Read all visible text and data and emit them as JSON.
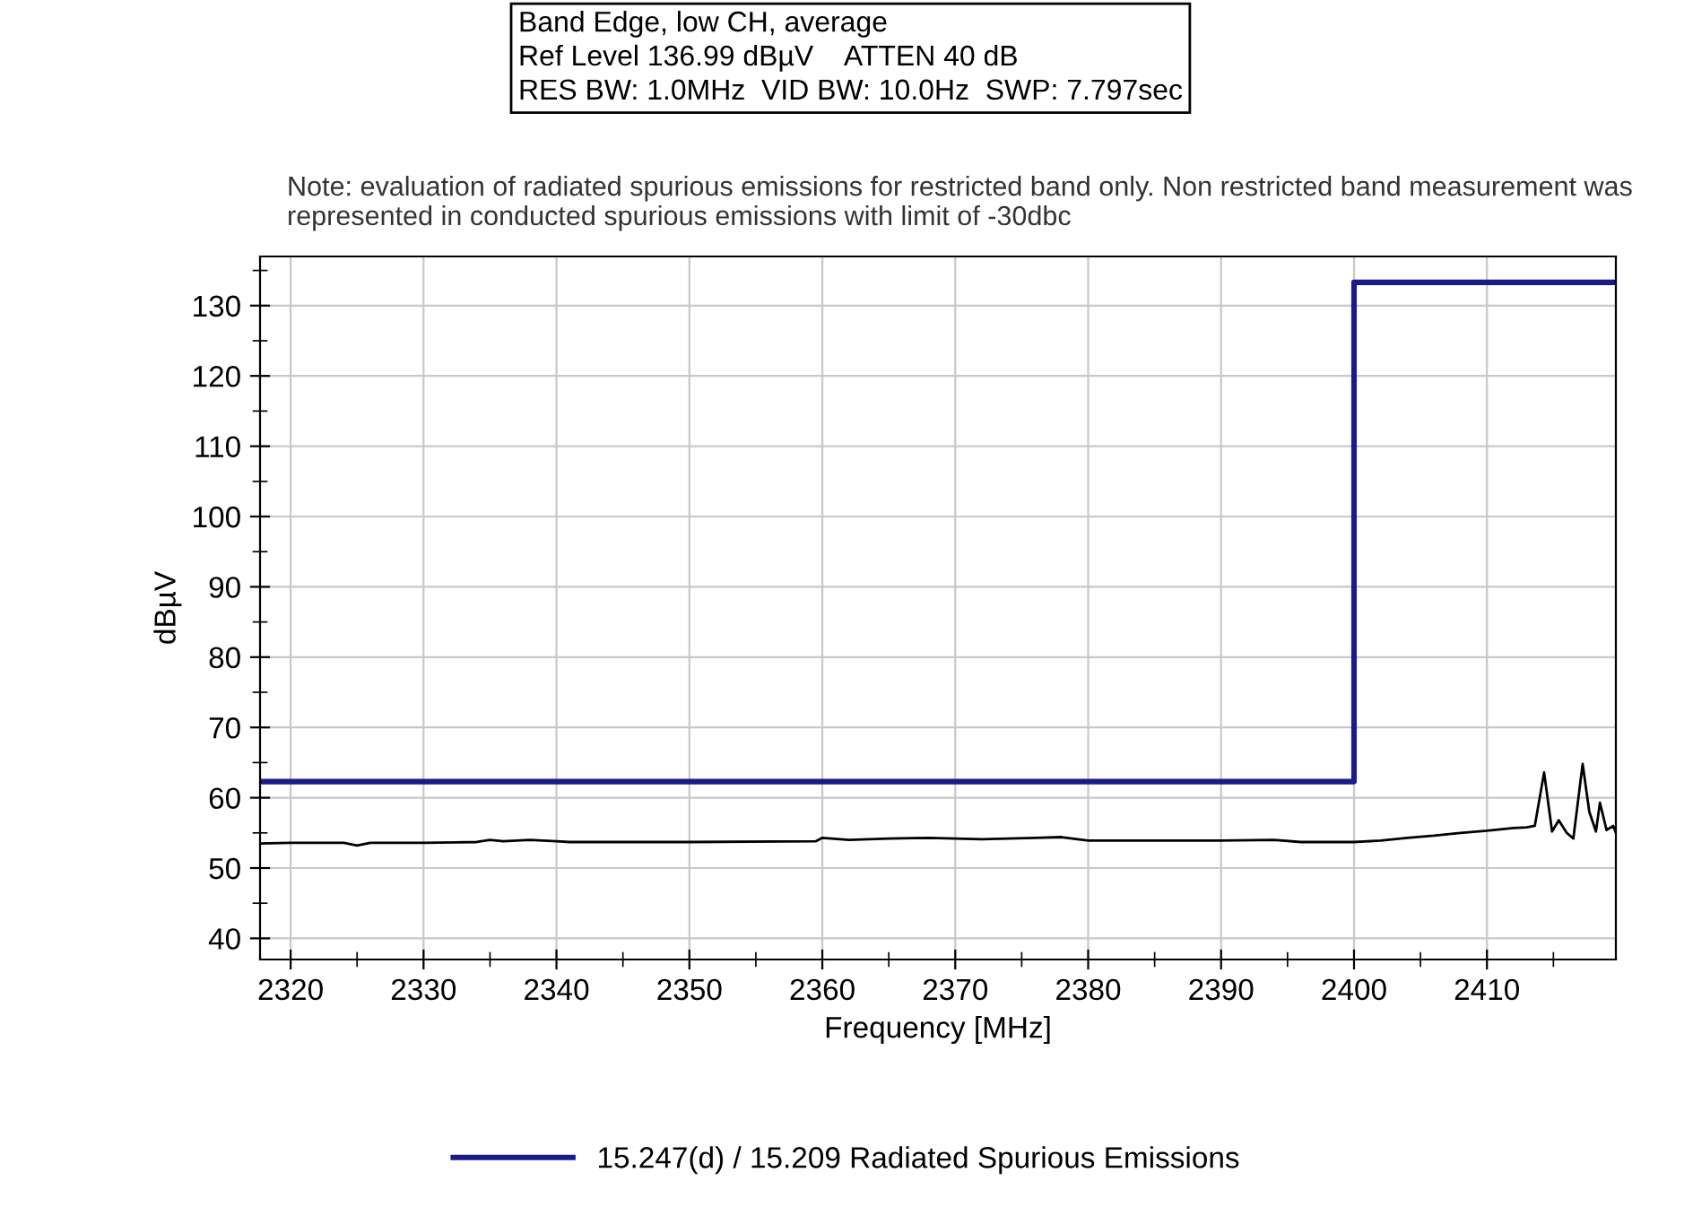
{
  "chart_data": {
    "type": "line",
    "title": "Band Edge, low CH, average\nRef Level 136.99 dBµV    ATTEN 40 dB\nRES BW: 1.0MHz  VID BW: 10.0Hz  SWP: 7.797sec",
    "subtitle": "Note: evaluation of radiated spurious emissions for restricted band only. Non restricted band measurement was represented in conducted spurious emissions with limit of -30dbc",
    "xlabel": "Frequency [MHz]",
    "ylabel": "dBµV",
    "series": [
      {
        "name": "15.247(d) / 15.209 Radiated Spurious Emissions",
        "color": "#1a1a8c",
        "type": "step",
        "x": [
          2317.7,
          2400,
          2419.7
        ],
        "values": [
          62.3,
          133.3,
          133.3
        ]
      },
      {
        "color": "#000000",
        "x": [
          2317.7,
          2320,
          2324,
          2325,
          2326,
          2330,
          2334,
          2335,
          2336,
          2338,
          2340,
          2341,
          2350,
          2359.5,
          2360,
          2362,
          2365,
          2368,
          2372,
          2376,
          2378,
          2380,
          2390,
          2394,
          2396,
          2400,
          2402,
          2404,
          2406,
          2408,
          2410,
          2412,
          2413,
          2413.6,
          2414.3,
          2414.9,
          2415.4,
          2416.0,
          2416.5,
          2417.2,
          2417.7,
          2418.2,
          2418.5,
          2419.0,
          2419.5,
          2419.7
        ],
        "values": [
          53.5,
          53.6,
          53.6,
          53.2,
          53.6,
          53.6,
          53.7,
          54.0,
          53.8,
          54.0,
          53.8,
          53.7,
          53.7,
          53.8,
          54.3,
          54.0,
          54.2,
          54.3,
          54.1,
          54.3,
          54.4,
          53.9,
          53.9,
          54.0,
          53.7,
          53.7,
          53.9,
          54.3,
          54.6,
          55.0,
          55.3,
          55.7,
          55.8,
          56.0,
          63.6,
          55.2,
          56.8,
          55.0,
          54.2,
          64.8,
          58.0,
          55.2,
          59.3,
          55.4,
          56.0,
          55.0
        ]
      }
    ],
    "xlim": [
      2317.7,
      2419.7
    ],
    "ylim": [
      36.99,
      136.99
    ],
    "xticks": [
      2320,
      {
        "value": 2325,
        "label": null
      },
      2330,
      {
        "value": 2335,
        "label": null
      },
      2340,
      {
        "value": 2345,
        "label": null
      },
      2350,
      {
        "value": 2355,
        "label": null
      },
      2360,
      {
        "value": 2365,
        "label": null
      },
      2370,
      {
        "value": 2375,
        "label": null
      },
      2380,
      {
        "value": 2385,
        "label": null
      },
      2390,
      {
        "value": 2395,
        "label": null
      },
      2400,
      {
        "value": 2405,
        "label": null
      },
      2410,
      {
        "value": 2415,
        "label": null
      }
    ],
    "yticks": [
      40,
      {
        "value": 45,
        "label": null
      },
      50,
      {
        "value": 55,
        "label": null
      },
      60,
      {
        "value": 65,
        "label": null
      },
      70,
      {
        "value": 75,
        "label": null
      },
      80,
      {
        "value": 85,
        "label": null
      },
      90,
      {
        "value": 95,
        "label": null
      },
      100,
      {
        "value": 105,
        "label": null
      },
      110,
      {
        "value": 115,
        "label": null
      },
      120,
      {
        "value": 125,
        "label": null
      },
      130,
      {
        "value": 135,
        "label": null
      }
    ],
    "grid": true,
    "legend": "bottom",
    "marker": "none",
    "line_style": "solid"
  }
}
